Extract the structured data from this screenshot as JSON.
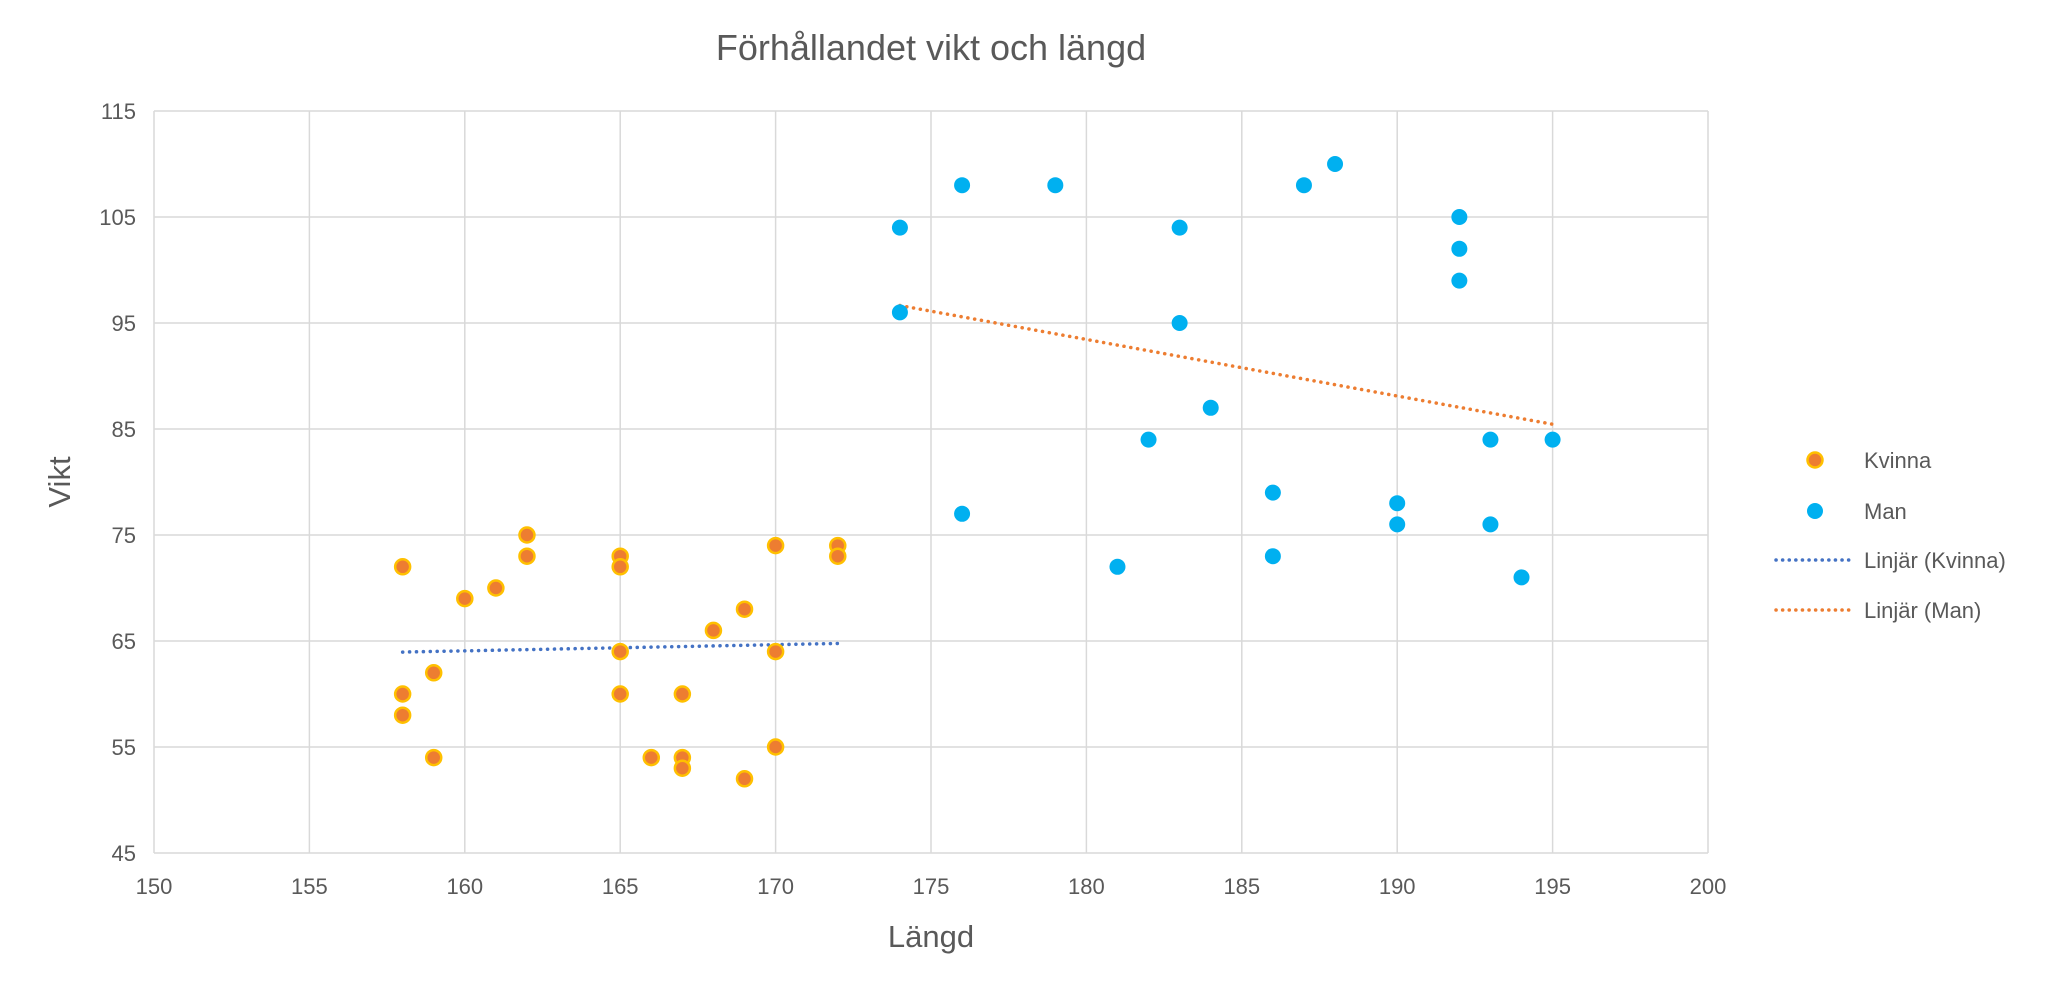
{
  "chart_data": {
    "type": "scatter",
    "title": "Förhållandet vikt och längd",
    "xlabel": "Längd",
    "ylabel": "Vikt",
    "xlim": [
      150,
      200
    ],
    "ylim": [
      45,
      115
    ],
    "x_ticks": [
      "150",
      "155",
      "160",
      "165",
      "170",
      "175",
      "180",
      "185",
      "190",
      "195",
      "200"
    ],
    "y_ticks": [
      "45",
      "55",
      "65",
      "75",
      "85",
      "95",
      "105",
      "115"
    ],
    "grid": true,
    "legend_position": "right",
    "series": [
      {
        "name": "Kvinna",
        "color": "#ED7D31",
        "edge_color": "#FFC000",
        "points": [
          [
            158,
            72
          ],
          [
            158,
            60
          ],
          [
            158,
            58
          ],
          [
            159,
            62
          ],
          [
            159,
            54
          ],
          [
            160,
            69
          ],
          [
            161,
            70
          ],
          [
            162,
            75
          ],
          [
            162,
            73
          ],
          [
            165,
            73
          ],
          [
            165,
            72
          ],
          [
            165,
            64
          ],
          [
            165,
            60
          ],
          [
            166,
            54
          ],
          [
            167,
            60
          ],
          [
            167,
            54
          ],
          [
            167,
            53
          ],
          [
            168,
            66
          ],
          [
            169,
            68
          ],
          [
            169,
            52
          ],
          [
            170,
            74
          ],
          [
            170,
            64
          ],
          [
            170,
            55
          ],
          [
            172,
            74
          ],
          [
            172,
            73
          ]
        ]
      },
      {
        "name": "Man",
        "color": "#00B0F0",
        "edge_color": "#00B0F0",
        "points": [
          [
            174,
            104
          ],
          [
            174,
            96
          ],
          [
            176,
            108
          ],
          [
            176,
            77
          ],
          [
            179,
            108
          ],
          [
            181,
            72
          ],
          [
            182,
            84
          ],
          [
            183,
            104
          ],
          [
            183,
            95
          ],
          [
            184,
            87
          ],
          [
            186,
            79
          ],
          [
            186,
            73
          ],
          [
            187,
            108
          ],
          [
            188,
            110
          ],
          [
            190,
            78
          ],
          [
            190,
            76
          ],
          [
            192,
            105
          ],
          [
            192,
            102
          ],
          [
            192,
            99
          ],
          [
            193,
            84
          ],
          [
            193,
            76
          ],
          [
            194,
            71
          ],
          [
            195,
            84
          ]
        ]
      }
    ],
    "trendlines": [
      {
        "name": "Linjär (Kvinna)",
        "of": "Kvinna",
        "type": "linear",
        "color": "#4472C4"
      },
      {
        "name": "Linjär (Man)",
        "of": "Man",
        "type": "linear",
        "color": "#ED7D31"
      }
    ]
  }
}
